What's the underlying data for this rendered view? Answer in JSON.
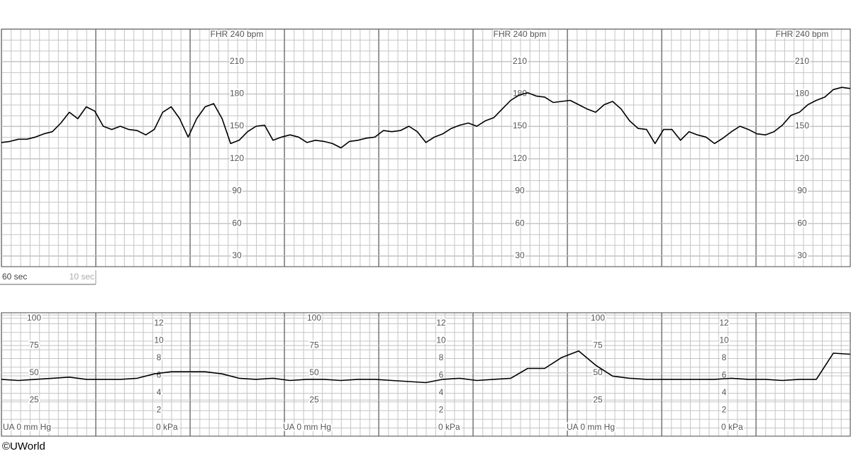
{
  "chart_data": [
    {
      "type": "line",
      "title": "FHR 240 bpm",
      "color": "#000000",
      "ylim": [
        20,
        240
      ],
      "yticks": [
        30,
        60,
        90,
        120,
        150,
        180,
        210
      ],
      "grid": true,
      "values": [
        135,
        136,
        138,
        138,
        140,
        143,
        145,
        153,
        163,
        157,
        168,
        164,
        150,
        147,
        150,
        147,
        146,
        142,
        147,
        163,
        168,
        157,
        140,
        157,
        168,
        171,
        157,
        134,
        137,
        145,
        150,
        151,
        137,
        140,
        142,
        140,
        135,
        137,
        136,
        134,
        130,
        136,
        137,
        139,
        140,
        146,
        145,
        146,
        150,
        145,
        135,
        140,
        143,
        148,
        151,
        153,
        150,
        155,
        158,
        166,
        174,
        179,
        181,
        178,
        177,
        172,
        173,
        174,
        170,
        166,
        163,
        170,
        173,
        166,
        155,
        148,
        147,
        134,
        147,
        147,
        137,
        145,
        142,
        140,
        134,
        139,
        145,
        150,
        147,
        143,
        142,
        145,
        151,
        160,
        163,
        170,
        174,
        177,
        184,
        186,
        185
      ]
    },
    {
      "type": "line",
      "title": "UA  0 mm Hg",
      "y2_title": "0 kPa",
      "color": "#000000",
      "ylim": [
        -8,
        105
      ],
      "yticks": [
        25,
        50,
        75,
        100
      ],
      "y2lim": [
        -1,
        13.2
      ],
      "y2ticks": [
        2,
        4,
        6,
        8,
        10,
        12
      ],
      "grid": true,
      "values": [
        44,
        43,
        44,
        45,
        46,
        44,
        44,
        44,
        45,
        49,
        51,
        51,
        51,
        49,
        45,
        44,
        45,
        43,
        44,
        44,
        43,
        44,
        44,
        43,
        42,
        41,
        44,
        45,
        43,
        44,
        45,
        54,
        54,
        64,
        70,
        57,
        47,
        45,
        44,
        44,
        44,
        44,
        44,
        45,
        44,
        44,
        43,
        44,
        44,
        68,
        67
      ]
    }
  ],
  "scale_bar": {
    "major": "60 sec",
    "minor": "10 sec"
  },
  "copyright": "©UWorld"
}
